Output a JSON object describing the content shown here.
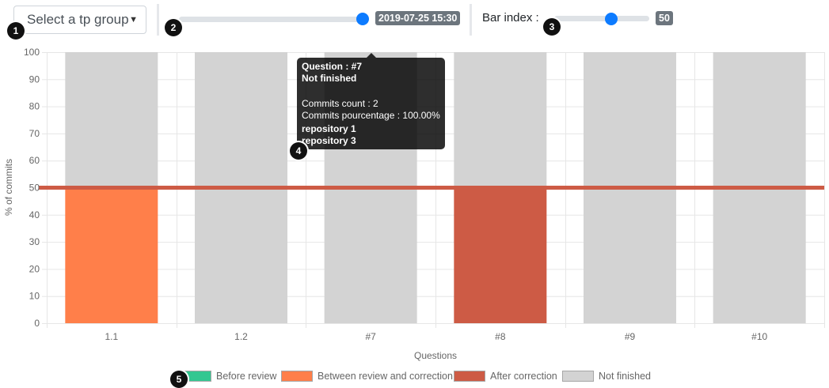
{
  "controls": {
    "group_select": {
      "value": "Select a tp group"
    },
    "date_slider": {
      "value_label": "2019-07-25 15:30",
      "fraction": 1.0
    },
    "bar_index": {
      "label": "Bar index :",
      "value_label": "50",
      "value": 50,
      "min": 0,
      "max": 100
    }
  },
  "markers": [
    "1",
    "2",
    "3",
    "4",
    "5"
  ],
  "icons": {
    "select_caret": "caret-down-icon"
  },
  "chart_data": {
    "type": "bar",
    "stacked": true,
    "categories": [
      "1.1",
      "1.2",
      "#7",
      "#8",
      "#9",
      "#10"
    ],
    "series": [
      {
        "name": "Before review",
        "color": "#33c791",
        "values": [
          0,
          0,
          0,
          0,
          0,
          0
        ]
      },
      {
        "name": "Between review and correction",
        "color": "#ff7f4a",
        "values": [
          50,
          0,
          0,
          0,
          0,
          0
        ]
      },
      {
        "name": "After correction",
        "color": "#cd5b45",
        "values": [
          0,
          0,
          0,
          50,
          0,
          0
        ]
      },
      {
        "name": "Not finished",
        "color": "#d3d3d3",
        "values": [
          50,
          100,
          100,
          50,
          100,
          100
        ]
      }
    ],
    "xlabel": "Questions",
    "ylabel": "% of commits",
    "ylim": [
      0,
      100
    ],
    "yticks": [
      0,
      10,
      20,
      30,
      40,
      50,
      60,
      70,
      80,
      90,
      100
    ],
    "reference_line": {
      "value": 50,
      "color": "#cd5b45"
    },
    "grid": true,
    "legend_placement": "bottom"
  },
  "tooltip": {
    "title": "Question : #7",
    "status": "Not finished",
    "commits_count": "Commits count : 2",
    "commits_percentage": "Commits pourcentage : 100.00%",
    "repositories": [
      "repository 1",
      "repository 3"
    ]
  }
}
